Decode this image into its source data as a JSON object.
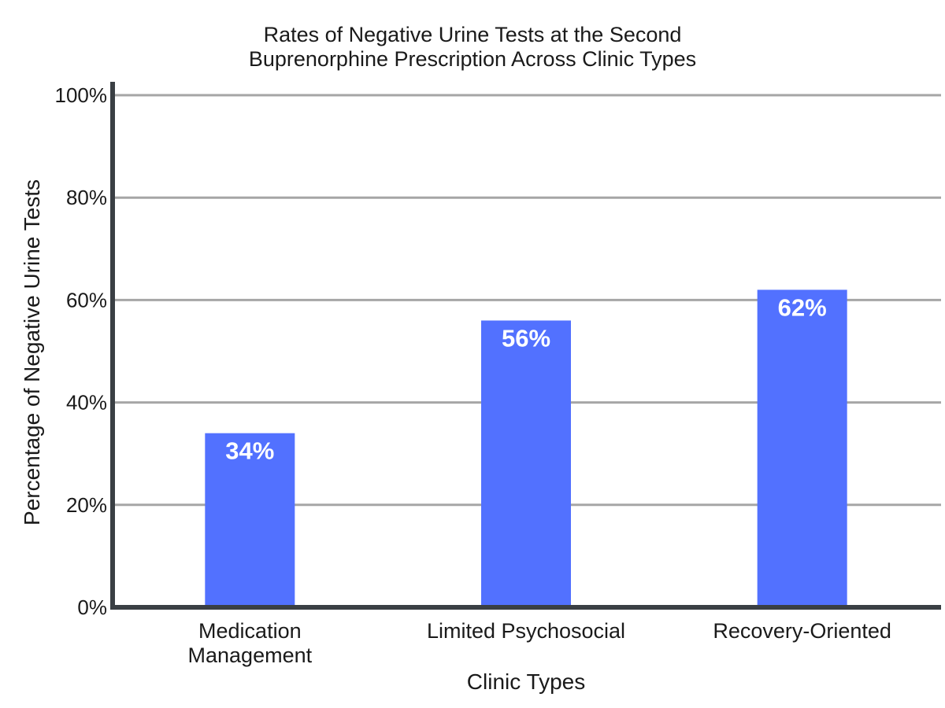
{
  "chart_data": {
    "type": "bar",
    "title": "Rates of Negative Urine Tests at the Second Buprenorphine Prescription Across Clinic Types",
    "title_lines": [
      "Rates of Negative Urine Tests at the Second",
      "Buprenorphine Prescription Across Clinic Types"
    ],
    "xlabel": "Clinic Types",
    "ylabel": "Percentage of Negative Urine Tests",
    "categories": [
      "Medication Management",
      "Limited Psychosocial",
      "Recovery-Oriented"
    ],
    "category_lines": [
      [
        "Medication",
        "Management"
      ],
      [
        "Limited Psychosocial"
      ],
      [
        "Recovery-Oriented"
      ]
    ],
    "values": [
      34,
      56,
      62
    ],
    "value_labels": [
      "34%",
      "56%",
      "62%"
    ],
    "ylim": [
      0,
      100
    ],
    "yticks": [
      0,
      20,
      40,
      60,
      80,
      100
    ],
    "ytick_labels": [
      "0%",
      "20%",
      "40%",
      "60%",
      "80%",
      "100%"
    ],
    "grid": true,
    "legend": "none",
    "colors": {
      "bar": "#5271ff",
      "grid": "#a6a6a6",
      "axis": "#3a3f44",
      "text": "#1a1a1a"
    }
  }
}
